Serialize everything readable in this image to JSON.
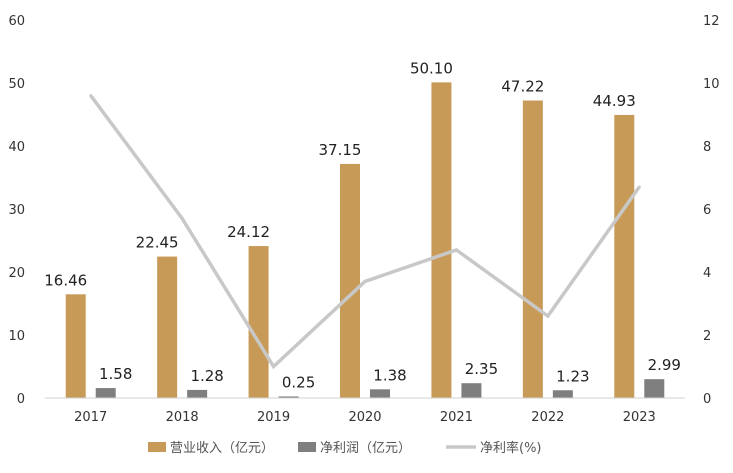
{
  "chart_data": {
    "type": "bar",
    "categories": [
      "2017",
      "2018",
      "2019",
      "2020",
      "2021",
      "2022",
      "2023"
    ],
    "series": [
      {
        "name": "营业收入（亿元）",
        "kind": "bar",
        "axis": "left",
        "color": "#C89A57",
        "values": [
          16.46,
          22.45,
          24.12,
          37.15,
          50.1,
          47.22,
          44.93
        ],
        "labels": [
          "16.46",
          "22.45",
          "24.12",
          "37.15",
          "50.10",
          "47.22",
          "44.93"
        ]
      },
      {
        "name": "净利润（亿元）",
        "kind": "bar",
        "axis": "left",
        "color": "#7F7F7F",
        "values": [
          1.58,
          1.28,
          0.25,
          1.38,
          2.35,
          1.23,
          2.99
        ],
        "labels": [
          "1.58",
          "1.28",
          "0.25",
          "1.38",
          "2.35",
          "1.23",
          "2.99"
        ]
      },
      {
        "name": "净利率(%)",
        "kind": "line",
        "axis": "right",
        "color": "#C8C8C8",
        "values": [
          9.6,
          5.7,
          1.0,
          3.7,
          4.7,
          2.6,
          6.7
        ]
      }
    ],
    "y_left": {
      "range": [
        0,
        60
      ],
      "ticks": [
        "0",
        "10",
        "20",
        "30",
        "40",
        "50",
        "60"
      ]
    },
    "y_right": {
      "range": [
        0,
        12
      ],
      "ticks": [
        "0",
        "2",
        "4",
        "6",
        "8",
        "10",
        "12"
      ]
    },
    "title": "",
    "xlabel": "",
    "ylabel": "",
    "grid": false,
    "legend_position": "bottom"
  }
}
